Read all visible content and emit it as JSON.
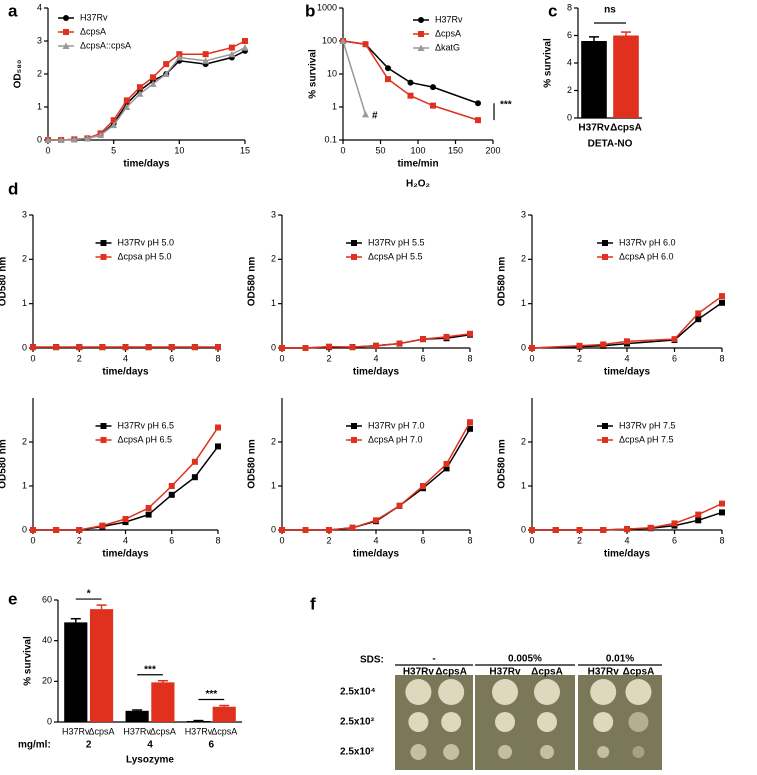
{
  "chart_data": [
    {
      "type": "line",
      "label": "a",
      "xlabel": "time/days",
      "ylabel": "OD₅₈₀",
      "xlim": [
        0,
        15
      ],
      "xticks": [
        0,
        5,
        10,
        15
      ],
      "ylim": [
        0,
        4
      ],
      "yticks": [
        0,
        1,
        2,
        3,
        4
      ],
      "legend": "upper left",
      "x": [
        0,
        1,
        2,
        3,
        4,
        5,
        6,
        7,
        8,
        9,
        10,
        12,
        14,
        15
      ],
      "series": [
        {
          "name": "H37Rv",
          "color": "#000000",
          "marker": "circle",
          "values": [
            0,
            0,
            0.02,
            0.05,
            0.15,
            0.5,
            1.1,
            1.5,
            1.8,
            2.0,
            2.4,
            2.3,
            2.5,
            2.7
          ]
        },
        {
          "name": "ΔcpsA",
          "color": "#e0301e",
          "marker": "square",
          "values": [
            0,
            0,
            0.02,
            0.05,
            0.2,
            0.6,
            1.2,
            1.6,
            1.9,
            2.3,
            2.6,
            2.6,
            2.8,
            3.0
          ]
        },
        {
          "name": "ΔcpsA::cpsA",
          "color": "#999999",
          "marker": "triangle",
          "values": [
            0,
            0,
            0.02,
            0.05,
            0.15,
            0.45,
            1.0,
            1.4,
            1.7,
            2.0,
            2.5,
            2.4,
            2.6,
            2.8
          ]
        }
      ]
    },
    {
      "type": "line",
      "label": "b",
      "xlabel": "time/min",
      "ylabel": "% survival",
      "subtitle": "H₂O₂",
      "ylog": true,
      "xlim": [
        0,
        200
      ],
      "xticks": [
        0,
        50,
        100,
        150,
        200
      ],
      "ylim": [
        0.1,
        1000
      ],
      "yticks": [
        0.1,
        1,
        10,
        100,
        1000
      ],
      "legend": "upper right",
      "annotations": [
        "#",
        "***"
      ],
      "series": [
        {
          "name": "H37Rv",
          "color": "#000000",
          "marker": "circle",
          "x": [
            0,
            30,
            60,
            90,
            120,
            180
          ],
          "values": [
            100,
            80,
            15,
            5.5,
            4,
            1.3
          ]
        },
        {
          "name": "ΔcpsA",
          "color": "#e0301e",
          "marker": "square",
          "x": [
            0,
            30,
            60,
            90,
            120,
            180
          ],
          "values": [
            100,
            80,
            7,
            2.2,
            1.1,
            0.4
          ]
        },
        {
          "name": "ΔkatG",
          "color": "#999999",
          "marker": "triangle",
          "x": [
            0,
            30
          ],
          "values": [
            100,
            0.6
          ]
        }
      ]
    },
    {
      "type": "bar",
      "label": "c",
      "xlabel": "DETA-NO",
      "ylabel": "% survival",
      "ylim": [
        0,
        8
      ],
      "yticks": [
        0,
        2,
        4,
        6,
        8
      ],
      "annotations": [
        "ns"
      ],
      "categories": [
        "H37Rv",
        "ΔcpsA"
      ],
      "values": [
        5.6,
        6.0
      ],
      "errors": [
        0.3,
        0.25
      ],
      "colors": [
        "#000000",
        "#e0301e"
      ]
    },
    {
      "type": "line",
      "label": "d",
      "xlabel": "time/days",
      "ylabel": "OD580 nm",
      "xlim": [
        0,
        8
      ],
      "xticks": [
        0,
        2,
        4,
        6,
        8
      ],
      "ylim": [
        0,
        3
      ],
      "yticks": [
        0,
        1,
        2,
        3
      ],
      "legend": "upper center",
      "x": [
        0,
        1,
        2,
        3,
        4,
        5,
        6,
        7,
        8
      ],
      "series": [
        {
          "name": "H37Rv pH 5.0",
          "color": "#000000",
          "marker": "square",
          "values": [
            0.02,
            0.02,
            0.02,
            0.02,
            0.02,
            0.02,
            0.02,
            0.02,
            0.02
          ]
        },
        {
          "name": "Δcpsa pH 5.0",
          "color": "#e0301e",
          "marker": "square",
          "values": [
            0.02,
            0.02,
            0.02,
            0.02,
            0.02,
            0.02,
            0.02,
            0.02,
            0.02
          ]
        }
      ]
    },
    {
      "type": "line",
      "xlabel": "time/days",
      "ylabel": "OD580 nm",
      "xlim": [
        0,
        8
      ],
      "xticks": [
        0,
        2,
        4,
        6,
        8
      ],
      "ylim": [
        0,
        3
      ],
      "yticks": [
        0,
        1,
        2,
        3
      ],
      "legend": "upper center",
      "x": [
        0,
        1,
        2,
        3,
        4,
        5,
        6,
        7,
        8
      ],
      "series": [
        {
          "name": "H37Rv pH 5.5",
          "color": "#000000",
          "marker": "square",
          "values": [
            0,
            0,
            0.02,
            0.02,
            0.05,
            0.1,
            0.2,
            0.22,
            0.3
          ]
        },
        {
          "name": "ΔcpsA pH 5.5",
          "color": "#e0301e",
          "marker": "square",
          "values": [
            0,
            0,
            0.03,
            0.02,
            0.05,
            0.1,
            0.2,
            0.25,
            0.32
          ]
        }
      ]
    },
    {
      "type": "line",
      "xlabel": "time/days",
      "ylabel": "OD580 nm",
      "xlim": [
        0,
        8
      ],
      "xticks": [
        0,
        2,
        4,
        6,
        8
      ],
      "ylim": [
        0,
        3
      ],
      "yticks": [
        0,
        1,
        2,
        3
      ],
      "legend": "upper center",
      "x": [
        0,
        2,
        3,
        4,
        6,
        7,
        8
      ],
      "series": [
        {
          "name": "H37Rv pH 6.0",
          "color": "#000000",
          "marker": "square",
          "values": [
            0,
            0.03,
            0.05,
            0.1,
            0.18,
            0.65,
            1.02
          ]
        },
        {
          "name": "ΔcpsA pH 6.0",
          "color": "#e0301e",
          "marker": "square",
          "values": [
            0,
            0.05,
            0.08,
            0.15,
            0.2,
            0.78,
            1.17
          ]
        }
      ]
    },
    {
      "type": "line",
      "xlabel": "time/days",
      "ylabel": "OD580 nm",
      "xlim": [
        0,
        8
      ],
      "xticks": [
        0,
        2,
        4,
        6,
        8
      ],
      "ylim": [
        0,
        3
      ],
      "yticks": [
        0,
        1,
        2
      ],
      "legend": "upper center",
      "x": [
        0,
        1,
        2,
        3,
        4,
        5,
        6,
        7,
        8
      ],
      "series": [
        {
          "name": "H37Rv pH 6.5",
          "color": "#000000",
          "marker": "square",
          "values": [
            0,
            0,
            0,
            0.08,
            0.18,
            0.35,
            0.8,
            1.2,
            1.9
          ]
        },
        {
          "name": "ΔcpsA pH 6.5",
          "color": "#e0301e",
          "marker": "square",
          "values": [
            0,
            0,
            0,
            0.1,
            0.25,
            0.5,
            1.0,
            1.55,
            2.33
          ]
        }
      ]
    },
    {
      "type": "line",
      "xlabel": "time/days",
      "ylabel": "OD580 nm",
      "xlim": [
        0,
        8
      ],
      "xticks": [
        0,
        2,
        4,
        6,
        8
      ],
      "ylim": [
        0,
        3
      ],
      "yticks": [
        0,
        1,
        2
      ],
      "legend": "upper center",
      "x": [
        0,
        1,
        2,
        3,
        4,
        5,
        6,
        7,
        8
      ],
      "series": [
        {
          "name": "H37Rv pH 7.0",
          "color": "#000000",
          "marker": "square",
          "values": [
            0,
            0,
            0,
            0.05,
            0.2,
            0.55,
            0.95,
            1.4,
            2.3
          ]
        },
        {
          "name": "ΔcpsA pH 7.0",
          "color": "#e0301e",
          "marker": "square",
          "values": [
            0,
            0,
            0,
            0.05,
            0.22,
            0.55,
            1.0,
            1.5,
            2.45
          ]
        }
      ]
    },
    {
      "type": "line",
      "xlabel": "time/days",
      "ylabel": "OD580 nm",
      "xlim": [
        0,
        8
      ],
      "xticks": [
        0,
        2,
        4,
        6,
        8
      ],
      "ylim": [
        0,
        3
      ],
      "yticks": [
        0,
        1,
        2
      ],
      "legend": "upper center",
      "x": [
        0,
        1,
        2,
        3,
        4,
        5,
        6,
        7,
        8
      ],
      "series": [
        {
          "name": "H37Rv pH 7.5",
          "color": "#000000",
          "marker": "square",
          "values": [
            0,
            0,
            0,
            0,
            0.02,
            0.04,
            0.1,
            0.22,
            0.4
          ]
        },
        {
          "name": "ΔcpsA pH 7.5",
          "color": "#e0301e",
          "marker": "square",
          "values": [
            0,
            0,
            0,
            0,
            0.02,
            0.05,
            0.15,
            0.35,
            0.6
          ]
        }
      ]
    },
    {
      "type": "grouped_bar",
      "label": "e",
      "xlabel": "Lysozyme",
      "ylabel": "% survival",
      "category_prefix": "mg/ml:",
      "ylim": [
        0,
        60
      ],
      "yticks": [
        0,
        20,
        40,
        60
      ],
      "annotations": [
        "*",
        "***",
        "***"
      ],
      "categories": [
        "2",
        "4",
        "6"
      ],
      "series": [
        {
          "name": "H37Rv",
          "color": "#000000",
          "values": [
            49,
            5.5,
            0.5
          ],
          "errors": [
            1.8,
            0.4,
            0.2
          ]
        },
        {
          "name": "ΔcpsA",
          "color": "#e0301e",
          "values": [
            55.5,
            19.5,
            7.5
          ],
          "errors": [
            2.0,
            0.8,
            0.6
          ]
        }
      ]
    }
  ],
  "plates": {
    "label": "f",
    "sds_label": "SDS:",
    "concentrations": [
      "-",
      "0.005%",
      "0.01%"
    ],
    "strains": [
      "H37Rv",
      "ΔcpsA"
    ],
    "dilutions": [
      "2.5x10⁴",
      "2.5x10³",
      "2.5x10²"
    ]
  }
}
